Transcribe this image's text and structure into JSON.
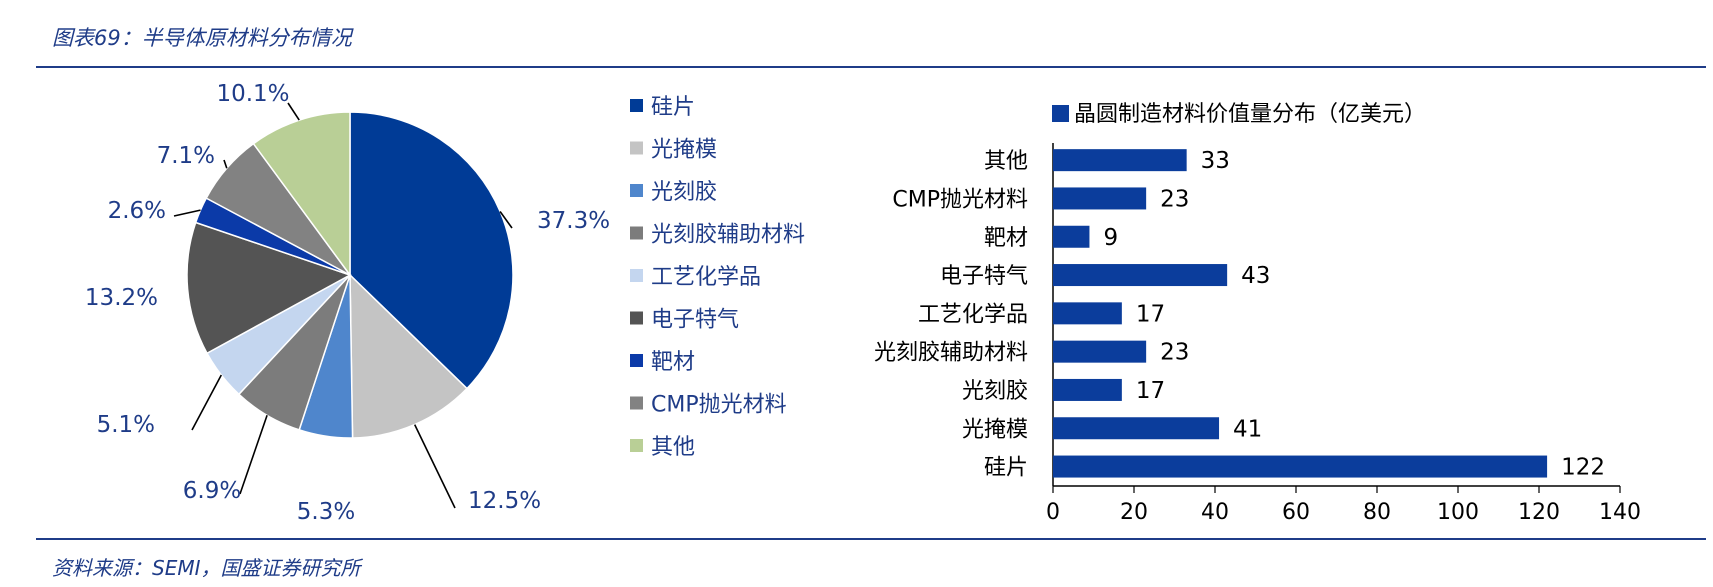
{
  "figure_title": "图表69：半导体原材料分布情况",
  "source": "资料来源：SEMI，国盛证券研究所",
  "colors": {
    "frame": "#1f3c88",
    "label_text": "#1f3c88",
    "bar": "#0b3d9c"
  },
  "chart_data": [
    {
      "type": "pie",
      "categories": [
        "硅片",
        "光掩模",
        "光刻胶",
        "光刻胶辅助材料",
        "工艺化学品",
        "电子特气",
        "靶材",
        "CMP抛光材料",
        "其他"
      ],
      "values": [
        37.3,
        12.5,
        5.3,
        6.9,
        5.1,
        13.2,
        2.6,
        7.1,
        10.1
      ],
      "labels": [
        "37.3%",
        "12.5%",
        "5.3%",
        "6.9%",
        "5.1%",
        "13.2%",
        "2.6%",
        "7.1%",
        "10.1%"
      ],
      "colors": [
        "#003b96",
        "#c4c4c4",
        "#4f86cc",
        "#7c7c7c",
        "#c4d6ef",
        "#545454",
        "#0b3aa8",
        "#828282",
        "#b9cf96"
      ],
      "legend": "right"
    },
    {
      "type": "bar",
      "orientation": "horizontal",
      "series_name": "晶圆制造材料价值量分布（亿美元）",
      "categories": [
        "其他",
        "CMP抛光材料",
        "靶材",
        "电子特气",
        "工艺化学品",
        "光刻胶辅助材料",
        "光刻胶",
        "光掩模",
        "硅片"
      ],
      "values": [
        33,
        23,
        9,
        43,
        17,
        23,
        17,
        41,
        122
      ],
      "xlim": [
        0,
        140
      ],
      "xticks": [
        0,
        20,
        40,
        60,
        80,
        100,
        120,
        140
      ],
      "legend": "top",
      "grid": false
    }
  ]
}
